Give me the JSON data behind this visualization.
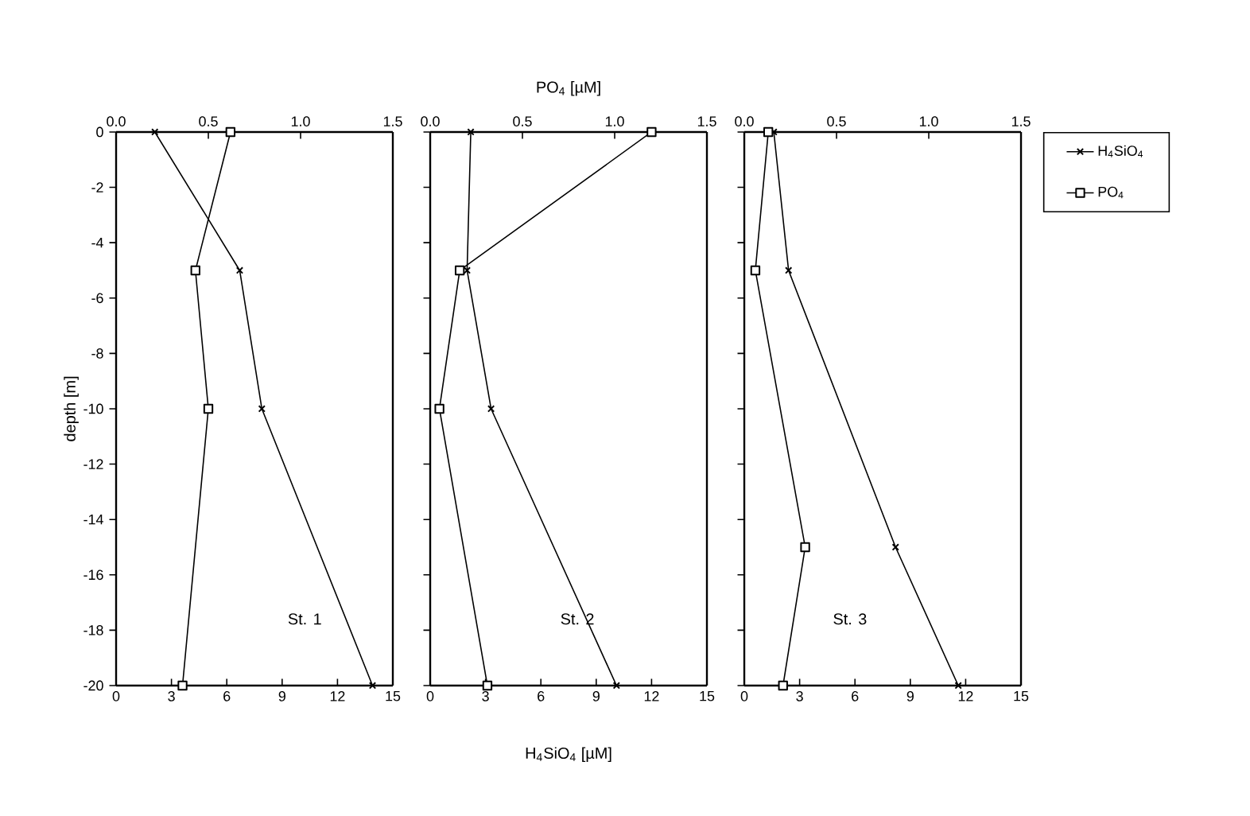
{
  "chart_data": [
    {
      "type": "line",
      "ylabel": "depth [m]",
      "annotations": [
        "St. 1"
      ],
      "xlim": [
        0,
        15
      ],
      "xticks": [
        0,
        3,
        6,
        9,
        12,
        15
      ],
      "x2lim": [
        0,
        1.5
      ],
      "x2ticks": [
        {
          "value": 0,
          "label": "0.0"
        },
        {
          "value": 0.5,
          "label": "0.5"
        },
        {
          "value": 1,
          "label": "1.0"
        },
        {
          "value": 1.5,
          "label": "1.5"
        }
      ],
      "ylim": [
        -20,
        0
      ],
      "yticks": [
        0,
        -2,
        -4,
        -6,
        -8,
        -10,
        -12,
        -14,
        -16,
        -18,
        -20
      ],
      "series": [
        {
          "color": "#000000",
          "marker": "cross",
          "x": [
            2.1,
            6.7,
            7.9,
            13.9
          ],
          "values": [
            0,
            -5,
            -10,
            -20
          ]
        },
        {
          "axis": "x2",
          "color": "#000000",
          "marker": "square",
          "x": [
            0.62,
            0.43,
            0.5,
            0.36
          ],
          "values": [
            0,
            -5,
            -10,
            -20
          ]
        }
      ]
    },
    {
      "type": "line",
      "xlabel": "H$_{4}$SiO$_{4}$ [µM]",
      "x2label": "PO$_{4}$ [µM]",
      "annotations": [
        "St. 2"
      ],
      "tick_labels": "x",
      "xlim": [
        0,
        15
      ],
      "xticks": [
        0,
        3,
        6,
        9,
        12,
        15
      ],
      "x2lim": [
        0,
        1.5
      ],
      "x2ticks": [
        {
          "value": 0,
          "label": "0.0"
        },
        {
          "value": 0.5,
          "label": "0.5"
        },
        {
          "value": 1,
          "label": "1.0"
        },
        {
          "value": 1.5,
          "label": "1.5"
        }
      ],
      "ylim": [
        -20,
        0
      ],
      "yticks": [
        0,
        -2,
        -4,
        -6,
        -8,
        -10,
        -12,
        -14,
        -16,
        -18,
        -20
      ],
      "series": [
        {
          "color": "#000000",
          "marker": "cross",
          "x": [
            2.2,
            2.0,
            3.3,
            10.1
          ],
          "values": [
            0,
            -5,
            -10,
            -20
          ]
        },
        {
          "axis": "x2",
          "color": "#000000",
          "marker": "square",
          "x": [
            1.2,
            0.16,
            0.05,
            0.31
          ],
          "values": [
            0,
            -5,
            -10,
            -20
          ]
        }
      ]
    },
    {
      "type": "line",
      "annotations": [
        "St. 3"
      ],
      "tick_labels": "x",
      "legend": "right",
      "xlim": [
        0,
        15
      ],
      "xticks": [
        0,
        3,
        6,
        9,
        12,
        15
      ],
      "x2lim": [
        0,
        1.5
      ],
      "x2ticks": [
        {
          "value": 0,
          "label": "0.0"
        },
        {
          "value": 0.5,
          "label": "0.5"
        },
        {
          "value": 1,
          "label": "1.0"
        },
        {
          "value": 1.5,
          "label": "1.5"
        }
      ],
      "ylim": [
        -20,
        0
      ],
      "yticks": [
        0,
        -2,
        -4,
        -6,
        -8,
        -10,
        -12,
        -14,
        -16,
        -18,
        -20
      ],
      "series": [
        {
          "name": "H$_{4}$SiO$_{4}$",
          "color": "#000000",
          "marker": "cross",
          "x": [
            1.6,
            2.4,
            8.2,
            11.6
          ],
          "values": [
            0,
            -5,
            -15,
            -20
          ]
        },
        {
          "name": "PO$_{4}$",
          "axis": "x2",
          "color": "#000000",
          "marker": "square",
          "x": [
            0.13,
            0.06,
            0.33,
            0.21
          ],
          "values": [
            0,
            -5,
            -15,
            -20
          ]
        }
      ]
    }
  ]
}
